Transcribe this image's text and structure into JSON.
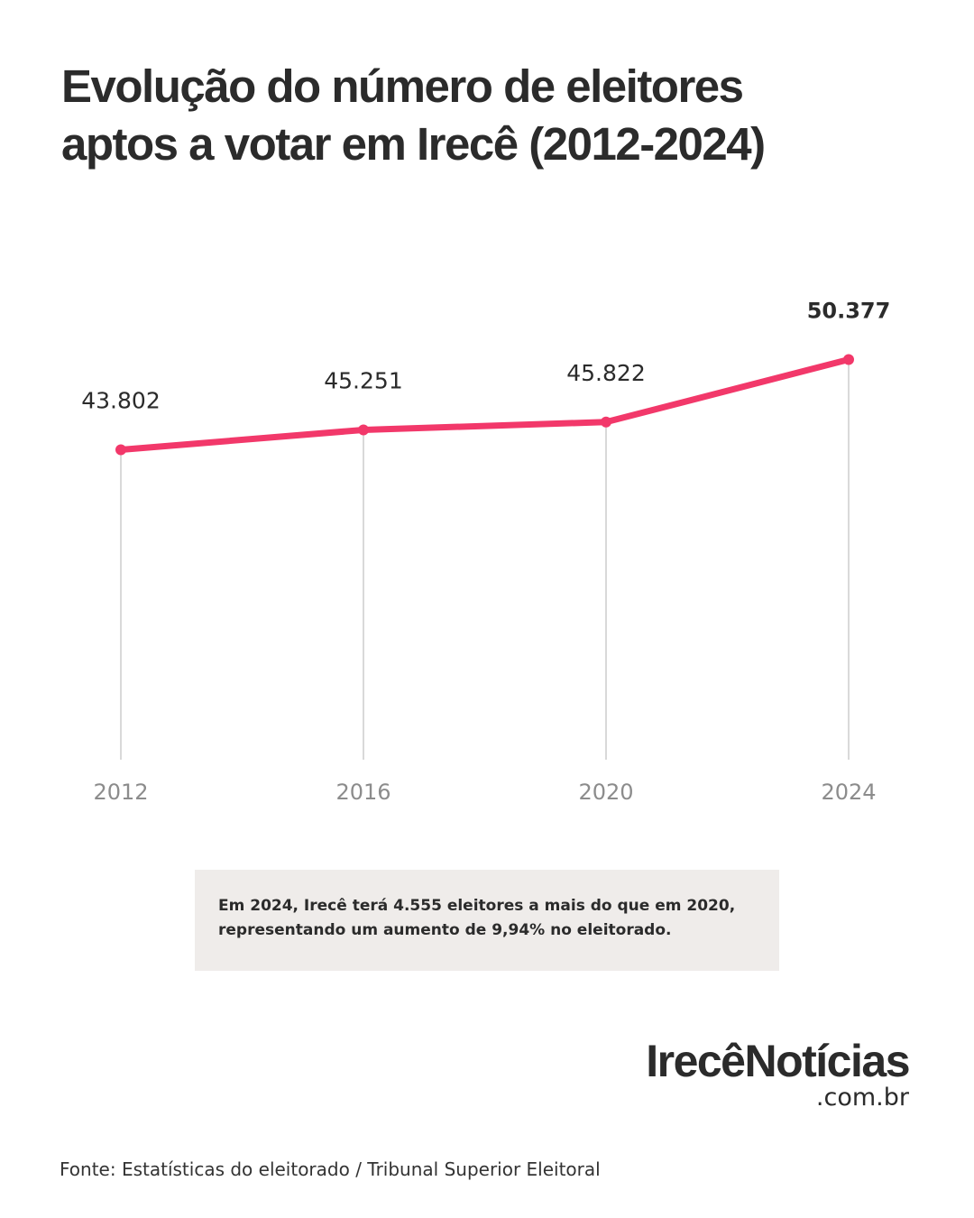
{
  "title": {
    "line1": "Evolução do número de eleitores",
    "line2": "aptos a votar em Irecê (2012-2024)"
  },
  "chart_data": {
    "type": "line",
    "title": "Evolução do número de eleitores aptos a votar em Irecê (2012-2024)",
    "xlabel": "",
    "ylabel": "",
    "categories": [
      "2012",
      "2016",
      "2020",
      "2024"
    ],
    "series": [
      {
        "values": [
          43802,
          45251,
          45822,
          50377
        ],
        "labels": [
          "43.802",
          "45.251",
          "45.822",
          "50.377"
        ],
        "color": "#f2386a"
      }
    ],
    "highlight_last_label": true,
    "grid": "vertical-drop-lines",
    "axis_label_color": "#8c8c8c",
    "droplines_color": "#d9d9d9"
  },
  "callout": {
    "line1": "Em 2024, Irecê terá 4.555 eleitores a mais do que em 2020,",
    "line2": "representando um aumento de 9,94% no eleitorado."
  },
  "brand": {
    "name": "IrecêNotícias",
    "domain": ".com.br"
  },
  "source": "Fonte: Estatísticas do eleitorado / Tribunal Superior Eleitoral"
}
